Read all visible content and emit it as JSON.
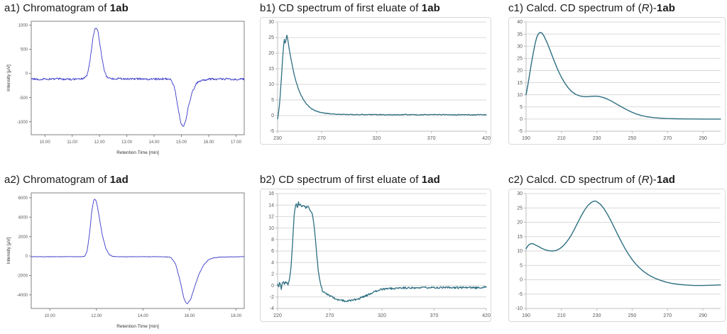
{
  "page": {
    "background": "#ffffff"
  },
  "chart_data": [
    {
      "id": "a1",
      "type": "line",
      "title_parts": {
        "pre": "a1) Chromatogram of ",
        "italic": "",
        "mid": "",
        "bold": "1ab"
      },
      "xlabel": "Retention Time [min]",
      "ylabel": "Intensity [μV]",
      "xlim": [
        9.5,
        17.3
      ],
      "ylim": [
        -1270,
        1080
      ],
      "xticks": [
        10,
        11,
        12,
        13,
        14,
        15,
        16,
        17
      ],
      "xtick_labels": [
        "10.00",
        "11.00",
        "12.00",
        "13.00",
        "14.00",
        "15.00",
        "16.00",
        "17.00"
      ],
      "yticks": [
        1000,
        500,
        0,
        -500,
        -1000
      ],
      "grid": false,
      "frame": true,
      "color": "#3a3ac8",
      "line_width": 0.9,
      "noise": 22,
      "samples": 420,
      "margin": {
        "l": 38,
        "r": 8,
        "t": 6,
        "b": 30
      },
      "points": [
        [
          9.5,
          -115
        ],
        [
          10.0,
          -120
        ],
        [
          10.5,
          -110
        ],
        [
          11.0,
          -125
        ],
        [
          11.3,
          -115
        ],
        [
          11.45,
          -100
        ],
        [
          11.55,
          -30
        ],
        [
          11.65,
          250
        ],
        [
          11.75,
          700
        ],
        [
          11.82,
          900
        ],
        [
          11.88,
          935
        ],
        [
          11.95,
          860
        ],
        [
          12.05,
          480
        ],
        [
          12.15,
          120
        ],
        [
          12.25,
          -60
        ],
        [
          12.4,
          -105
        ],
        [
          13.0,
          -115
        ],
        [
          13.5,
          -110
        ],
        [
          14.0,
          -120
        ],
        [
          14.4,
          -110
        ],
        [
          14.6,
          -130
        ],
        [
          14.75,
          -300
        ],
        [
          14.9,
          -800
        ],
        [
          15.0,
          -1060
        ],
        [
          15.07,
          -1105
        ],
        [
          15.15,
          -1010
        ],
        [
          15.25,
          -700
        ],
        [
          15.4,
          -380
        ],
        [
          15.55,
          -200
        ],
        [
          15.7,
          -145
        ],
        [
          16.0,
          -120
        ],
        [
          16.5,
          -115
        ],
        [
          17.0,
          -120
        ],
        [
          17.3,
          -115
        ]
      ]
    },
    {
      "id": "b1",
      "type": "line",
      "title_parts": {
        "pre": "b1) CD spectrum of first eluate of ",
        "italic": "",
        "mid": "",
        "bold": "1ab"
      },
      "xlabel": "",
      "ylabel": "",
      "xlim": [
        230,
        420
      ],
      "ylim": [
        -5,
        30
      ],
      "xticks": [
        230,
        270,
        320,
        370,
        420
      ],
      "xtick_labels": [
        "230",
        "270",
        "320",
        "370",
        "420"
      ],
      "yticks": [
        -5,
        0,
        5,
        10,
        15,
        20,
        25,
        30
      ],
      "grid": true,
      "frame": false,
      "color": "#2e6f82",
      "line_width": 1.3,
      "noise": 0.12,
      "samples": 340,
      "margin": {
        "l": 24,
        "r": 6,
        "t": 6,
        "b": 18
      },
      "points": [
        [
          230,
          -1.2
        ],
        [
          230.8,
          0.8
        ],
        [
          231.6,
          3.2
        ],
        [
          232.6,
          7.5
        ],
        [
          233.6,
          13
        ],
        [
          234.6,
          18.5
        ],
        [
          235.4,
          22
        ],
        [
          236.2,
          24.6
        ],
        [
          236.9,
          22.8
        ],
        [
          237.6,
          24.2
        ],
        [
          238.4,
          25.8
        ],
        [
          239.2,
          24.6
        ],
        [
          240.4,
          21.8
        ],
        [
          242,
          18.5
        ],
        [
          243.8,
          15.2
        ],
        [
          246,
          11.8
        ],
        [
          248.5,
          9.0
        ],
        [
          251,
          6.8
        ],
        [
          254,
          4.8
        ],
        [
          257,
          3.4
        ],
        [
          260,
          2.4
        ],
        [
          264,
          1.6
        ],
        [
          268,
          1.1
        ],
        [
          272,
          0.8
        ],
        [
          277,
          0.6
        ],
        [
          283,
          0.45
        ],
        [
          290,
          0.4
        ],
        [
          300,
          0.3
        ],
        [
          310,
          0.35
        ],
        [
          320,
          0.3
        ],
        [
          332,
          0.25
        ],
        [
          345,
          0.3
        ],
        [
          358,
          0.25
        ],
        [
          372,
          0.3
        ],
        [
          386,
          0.25
        ],
        [
          400,
          0.3
        ],
        [
          410,
          0.25
        ],
        [
          420,
          0.3
        ]
      ]
    },
    {
      "id": "c1",
      "type": "line",
      "title_parts": {
        "pre": "c1) Calcd. CD spectrum of (",
        "italic": "R",
        "mid": ")-",
        "bold": "1ab"
      },
      "xlabel": "",
      "ylabel": "",
      "xlim": [
        190,
        300
      ],
      "ylim": [
        -5,
        40
      ],
      "xticks": [
        190,
        210,
        230,
        250,
        270,
        290
      ],
      "xtick_labels": [
        "190",
        "210",
        "230",
        "250",
        "270",
        "290"
      ],
      "yticks": [
        -5,
        0,
        5,
        10,
        15,
        20,
        25,
        30,
        35,
        40
      ],
      "grid": true,
      "frame": false,
      "color": "#2e6f82",
      "line_width": 1.4,
      "noise": 0,
      "samples": 0,
      "margin": {
        "l": 24,
        "r": 6,
        "t": 6,
        "b": 18
      },
      "points": [
        [
          190,
          10
        ],
        [
          191,
          14
        ],
        [
          192,
          18.5
        ],
        [
          193,
          23
        ],
        [
          194,
          27
        ],
        [
          195,
          30.8
        ],
        [
          196,
          33.6
        ],
        [
          197,
          35.2
        ],
        [
          198,
          35.7
        ],
        [
          199,
          35.4
        ],
        [
          200,
          34.4
        ],
        [
          202,
          31.3
        ],
        [
          204,
          27.5
        ],
        [
          206,
          23.7
        ],
        [
          208,
          20.2
        ],
        [
          210,
          17.2
        ],
        [
          212,
          14.7
        ],
        [
          214,
          12.7
        ],
        [
          216,
          11.2
        ],
        [
          218,
          10.2
        ],
        [
          220,
          9.6
        ],
        [
          222,
          9.3
        ],
        [
          224,
          9.2
        ],
        [
          226,
          9.3
        ],
        [
          228,
          9.4
        ],
        [
          230,
          9.4
        ],
        [
          232,
          9.2
        ],
        [
          234,
          8.8
        ],
        [
          236,
          8.2
        ],
        [
          238,
          7.5
        ],
        [
          240,
          6.7
        ],
        [
          243,
          5.4
        ],
        [
          246,
          4.2
        ],
        [
          249,
          3.1
        ],
        [
          252,
          2.2
        ],
        [
          255,
          1.5
        ],
        [
          258,
          1.0
        ],
        [
          262,
          0.6
        ],
        [
          266,
          0.35
        ],
        [
          270,
          0.2
        ],
        [
          275,
          0.1
        ],
        [
          280,
          0.05
        ],
        [
          290,
          0.0
        ],
        [
          300,
          0.0
        ]
      ]
    },
    {
      "id": "a2",
      "type": "line",
      "title_parts": {
        "pre": "a2) Chromatogram of ",
        "italic": "",
        "mid": "",
        "bold": "1ad"
      },
      "xlabel": "Retention Time [min]",
      "ylabel": "Intensity [μV]",
      "xlim": [
        9.2,
        18.35
      ],
      "ylim": [
        -5400,
        6500
      ],
      "xticks": [
        10,
        12,
        14,
        16,
        18
      ],
      "xtick_labels": [
        "10.00",
        "12.00",
        "14.00",
        "16.00",
        "18.00"
      ],
      "yticks": [
        6000,
        4000,
        2000,
        0,
        -2000,
        -4000
      ],
      "grid": false,
      "frame": true,
      "color": "#3a3ac8",
      "line_width": 0.9,
      "noise": 25,
      "samples": 420,
      "margin": {
        "l": 38,
        "r": 8,
        "t": 6,
        "b": 30
      },
      "points": [
        [
          9.2,
          -70
        ],
        [
          10.0,
          -75
        ],
        [
          10.5,
          -70
        ],
        [
          11.0,
          -75
        ],
        [
          11.35,
          -70
        ],
        [
          11.5,
          -20
        ],
        [
          11.6,
          500
        ],
        [
          11.7,
          2200
        ],
        [
          11.8,
          4600
        ],
        [
          11.88,
          5700
        ],
        [
          11.93,
          5880
        ],
        [
          12.0,
          5600
        ],
        [
          12.1,
          4300
        ],
        [
          12.25,
          2200
        ],
        [
          12.4,
          800
        ],
        [
          12.55,
          150
        ],
        [
          12.7,
          -40
        ],
        [
          12.9,
          -70
        ],
        [
          13.5,
          -75
        ],
        [
          14.0,
          -70
        ],
        [
          14.5,
          -75
        ],
        [
          15.0,
          -80
        ],
        [
          15.2,
          -150
        ],
        [
          15.4,
          -800
        ],
        [
          15.6,
          -2600
        ],
        [
          15.75,
          -4300
        ],
        [
          15.85,
          -4850
        ],
        [
          15.92,
          -4900
        ],
        [
          16.05,
          -4450
        ],
        [
          16.2,
          -3300
        ],
        [
          16.4,
          -1900
        ],
        [
          16.6,
          -950
        ],
        [
          16.8,
          -420
        ],
        [
          17.0,
          -200
        ],
        [
          17.3,
          -110
        ],
        [
          17.7,
          -85
        ],
        [
          18.1,
          -80
        ],
        [
          18.35,
          -75
        ]
      ]
    },
    {
      "id": "b2",
      "type": "line",
      "title_parts": {
        "pre": "b2) CD spectrum of first eluate of ",
        "italic": "",
        "mid": "",
        "bold": "1ad"
      },
      "xlabel": "",
      "ylabel": "",
      "xlim": [
        220,
        420
      ],
      "ylim": [
        -4,
        16
      ],
      "xticks": [
        220,
        270,
        320,
        370,
        420
      ],
      "xtick_labels": [
        "220",
        "270",
        "320",
        "370",
        "420"
      ],
      "yticks": [
        -4,
        -2,
        0,
        2,
        4,
        6,
        8,
        10,
        12,
        14,
        16
      ],
      "grid": true,
      "frame": false,
      "color": "#2e6f82",
      "line_width": 1.3,
      "noise": 0.18,
      "samples": 340,
      "margin": {
        "l": 24,
        "r": 6,
        "t": 6,
        "b": 18
      },
      "points": [
        [
          220,
          0.3
        ],
        [
          221,
          -0.3
        ],
        [
          222,
          0.8
        ],
        [
          223.5,
          -0.6
        ],
        [
          225,
          0.9
        ],
        [
          226.5,
          0.2
        ],
        [
          228,
          0.6
        ],
        [
          230,
          0.2
        ],
        [
          231.5,
          1.0
        ],
        [
          233,
          3.5
        ],
        [
          234.5,
          8.0
        ],
        [
          236,
          12.5
        ],
        [
          237,
          13.8
        ],
        [
          238,
          14.3
        ],
        [
          239,
          13.6
        ],
        [
          240,
          14.4
        ],
        [
          241,
          13.8
        ],
        [
          242,
          14.2
        ],
        [
          243.5,
          13.6
        ],
        [
          245,
          14.0
        ],
        [
          247,
          13.5
        ],
        [
          249,
          13.8
        ],
        [
          251,
          13.2
        ],
        [
          253,
          12.6
        ],
        [
          255,
          10.5
        ],
        [
          257,
          6.5
        ],
        [
          259,
          2.5
        ],
        [
          261,
          0.3
        ],
        [
          263,
          -0.9
        ],
        [
          265,
          -1.3
        ],
        [
          268,
          -1.6
        ],
        [
          272,
          -2.0
        ],
        [
          276,
          -2.3
        ],
        [
          281,
          -2.6
        ],
        [
          286,
          -2.7
        ],
        [
          291,
          -2.6
        ],
        [
          296,
          -2.4
        ],
        [
          302,
          -2.0
        ],
        [
          308,
          -1.5
        ],
        [
          314,
          -1.0
        ],
        [
          320,
          -0.7
        ],
        [
          330,
          -0.5
        ],
        [
          340,
          -0.45
        ],
        [
          350,
          -0.4
        ],
        [
          360,
          -0.35
        ],
        [
          370,
          -0.4
        ],
        [
          380,
          -0.35
        ],
        [
          390,
          -0.4
        ],
        [
          400,
          -0.35
        ],
        [
          410,
          -0.4
        ],
        [
          420,
          -0.35
        ]
      ]
    },
    {
      "id": "c2",
      "type": "line",
      "title_parts": {
        "pre": "c2) Calcd. CD spectrum of (",
        "italic": "R",
        "mid": ")-",
        "bold": "1ad"
      },
      "xlabel": "",
      "ylabel": "",
      "xlim": [
        190,
        300
      ],
      "ylim": [
        -10,
        30
      ],
      "xticks": [
        190,
        210,
        230,
        250,
        270,
        290
      ],
      "xtick_labels": [
        "190",
        "210",
        "230",
        "250",
        "270",
        "290"
      ],
      "yticks": [
        -10,
        -5,
        0,
        5,
        10,
        15,
        20,
        25,
        30
      ],
      "grid": true,
      "frame": false,
      "color": "#2e6f82",
      "line_width": 1.4,
      "noise": 0,
      "samples": 0,
      "margin": {
        "l": 24,
        "r": 6,
        "t": 6,
        "b": 18
      },
      "points": [
        [
          190,
          10.8
        ],
        [
          191,
          11.8
        ],
        [
          192,
          12.4
        ],
        [
          193,
          12.6
        ],
        [
          194,
          12.5
        ],
        [
          195,
          12.2
        ],
        [
          197,
          11.6
        ],
        [
          199,
          10.9
        ],
        [
          201,
          10.4
        ],
        [
          203,
          10.1
        ],
        [
          205,
          10.0
        ],
        [
          207,
          10.2
        ],
        [
          209,
          10.8
        ],
        [
          211,
          11.8
        ],
        [
          213,
          13.2
        ],
        [
          215,
          15.0
        ],
        [
          217,
          17.2
        ],
        [
          219,
          19.6
        ],
        [
          221,
          22.0
        ],
        [
          223,
          24.2
        ],
        [
          225,
          25.9
        ],
        [
          227,
          27.0
        ],
        [
          228,
          27.3
        ],
        [
          229,
          27.4
        ],
        [
          230,
          27.2
        ],
        [
          232,
          26.3
        ],
        [
          234,
          24.8
        ],
        [
          236,
          22.8
        ],
        [
          238,
          20.5
        ],
        [
          240,
          18.0
        ],
        [
          242,
          15.5
        ],
        [
          244,
          13.1
        ],
        [
          246,
          10.8
        ],
        [
          248,
          8.8
        ],
        [
          250,
          7.0
        ],
        [
          252,
          5.5
        ],
        [
          254,
          4.2
        ],
        [
          256,
          3.1
        ],
        [
          258,
          2.2
        ],
        [
          260,
          1.4
        ],
        [
          263,
          0.5
        ],
        [
          266,
          -0.2
        ],
        [
          269,
          -0.8
        ],
        [
          272,
          -1.2
        ],
        [
          276,
          -1.6
        ],
        [
          280,
          -1.8
        ],
        [
          285,
          -2.0
        ],
        [
          290,
          -2.0
        ],
        [
          295,
          -1.9
        ],
        [
          300,
          -1.8
        ]
      ]
    }
  ]
}
